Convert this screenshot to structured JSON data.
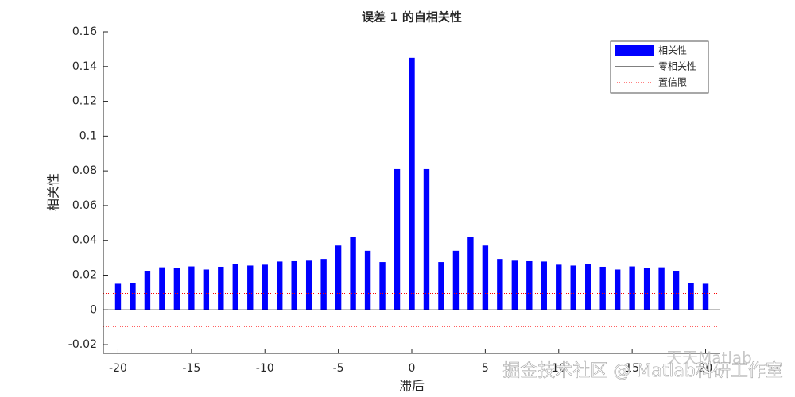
{
  "chart_data": {
    "type": "bar",
    "title": "误差 1 的自相关性",
    "x_label": "滞后",
    "y_label": "相关性",
    "x": [
      -20,
      -19,
      -18,
      -17,
      -16,
      -15,
      -14,
      -13,
      -12,
      -11,
      -10,
      -9,
      -8,
      -7,
      -6,
      -5,
      -4,
      -3,
      -2,
      -1,
      0,
      1,
      2,
      3,
      4,
      5,
      6,
      7,
      8,
      9,
      10,
      11,
      12,
      13,
      14,
      15,
      16,
      17,
      18,
      19,
      20
    ],
    "series": [
      {
        "name": "相关性",
        "color": "#0000ff",
        "values": [
          0.015,
          0.0155,
          0.0225,
          0.0245,
          0.024,
          0.025,
          0.0232,
          0.0248,
          0.0265,
          0.0255,
          0.026,
          0.0278,
          0.028,
          0.0283,
          0.0293,
          0.037,
          0.042,
          0.034,
          0.0275,
          0.081,
          0.145,
          0.081,
          0.0275,
          0.034,
          0.042,
          0.037,
          0.0293,
          0.0283,
          0.028,
          0.0278,
          0.026,
          0.0255,
          0.0265,
          0.0248,
          0.0232,
          0.025,
          0.024,
          0.0245,
          0.0225,
          0.0155,
          0.015
        ]
      }
    ],
    "zero_line": {
      "name": "零相关性",
      "color": "#000000",
      "value": 0
    },
    "confidence_limit": {
      "name": "置信限",
      "color": "#ff0000",
      "values": [
        0.0095,
        -0.0095
      ]
    },
    "xlim": [
      -21,
      21
    ],
    "xticks": [
      -20,
      -15,
      -10,
      -5,
      0,
      5,
      10,
      15,
      20
    ],
    "ylim": [
      -0.025,
      0.16
    ],
    "yticks": [
      -0.02,
      0,
      0.02,
      0.04,
      0.06,
      0.08,
      0.1,
      0.12,
      0.14,
      0.16
    ],
    "legend": "upper right",
    "watermark": [
      "天天Matlab",
      "掘金技术社区 @ Matlab科研工作室"
    ]
  }
}
